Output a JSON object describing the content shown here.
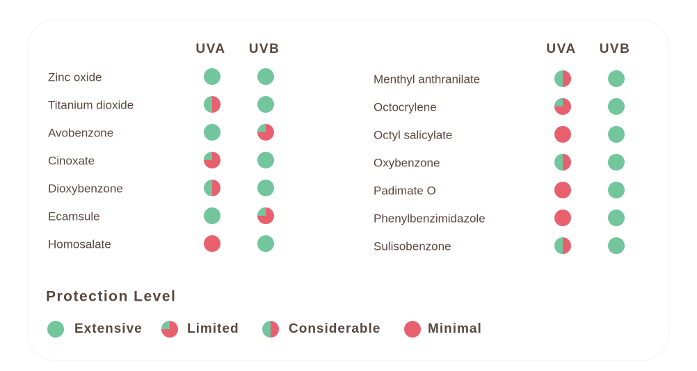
{
  "left": {
    "headers": [
      "UVA",
      "UVB"
    ],
    "rows": [
      {
        "name": "Zinc oxide",
        "uva": "Extensive",
        "uvb": "Extensive"
      },
      {
        "name": "Titanium dioxide",
        "uva": "Considerable",
        "uvb": "Extensive"
      },
      {
        "name": "Avobenzone",
        "uva": "Extensive",
        "uvb": "Limited"
      },
      {
        "name": "Cinoxate",
        "uva": "Limited",
        "uvb": "Extensive"
      },
      {
        "name": "Dioxybenzone",
        "uva": "Considerable",
        "uvb": "Extensive"
      },
      {
        "name": "Ecamsule",
        "uva": "Extensive",
        "uvb": "Limited"
      },
      {
        "name": "Homosalate",
        "uva": "Minimal",
        "uvb": "Extensive"
      }
    ]
  },
  "right": {
    "headers": [
      "UVA",
      "UVB"
    ],
    "rows": [
      {
        "name": "Menthyl anthranilate",
        "uva": "Considerable",
        "uvb": "Extensive"
      },
      {
        "name": "Octocrylene",
        "uva": "Limited",
        "uvb": "Extensive"
      },
      {
        "name": "Octyl salicylate",
        "uva": "Minimal",
        "uvb": "Extensive"
      },
      {
        "name": "Oxybenzone",
        "uva": "Considerable",
        "uvb": "Extensive"
      },
      {
        "name": "Padimate O",
        "uva": "Minimal",
        "uvb": "Extensive"
      },
      {
        "name": "Phenylbenzimidazole",
        "uva": "Minimal",
        "uvb": "Extensive"
      },
      {
        "name": "Sulisobenzone",
        "uva": "Considerable",
        "uvb": "Extensive"
      }
    ]
  },
  "legend": {
    "title": "Protection Level",
    "items": [
      "Extensive",
      "Limited",
      "Considerable",
      "Minimal"
    ]
  }
}
